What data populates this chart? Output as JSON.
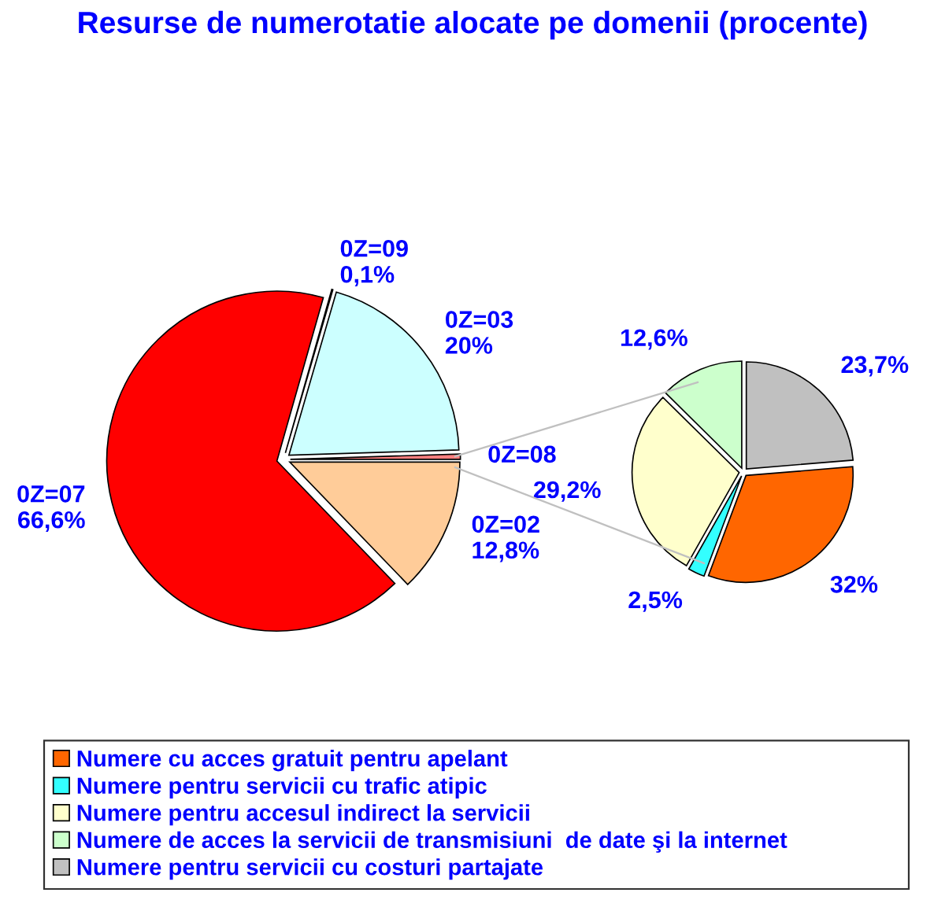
{
  "chart_data": [
    {
      "type": "pie",
      "title": "Resurse de numerotatie alocate pe domenii (procente)",
      "categories": [
        "0Z=08",
        "0Z=03",
        "0Z=09",
        "0Z=07",
        "0Z=02"
      ],
      "values": [
        0.5,
        20,
        0.1,
        66.6,
        12.8
      ],
      "value_labels": [
        null,
        "20%",
        "0,1%",
        "66,6%",
        "12,8%"
      ],
      "colors": [
        "#ff8080",
        "#ccffff",
        "#ffffff",
        "#ff0000",
        "#ffcc99"
      ]
    },
    {
      "type": "pie",
      "categories": [
        "Numere cu acces gratuit pentru apelant",
        "Numere pentru servicii cu trafic atipic",
        "Numere pentru accesul indirect la servicii",
        "Numere de acces la servicii de transmisiuni  de date şi la internet",
        "Numere pentru servicii cu costuri partajate"
      ],
      "values": [
        32,
        2.5,
        29.2,
        12.6,
        23.7
      ],
      "value_labels": [
        "32%",
        "2,5%",
        "29,2%",
        "12,6%",
        "23,7%"
      ],
      "colors": [
        "#ff6600",
        "#33ffff",
        "#ffffcc",
        "#ccffcc",
        "#c0c0c0"
      ],
      "legend": "bottom"
    }
  ]
}
